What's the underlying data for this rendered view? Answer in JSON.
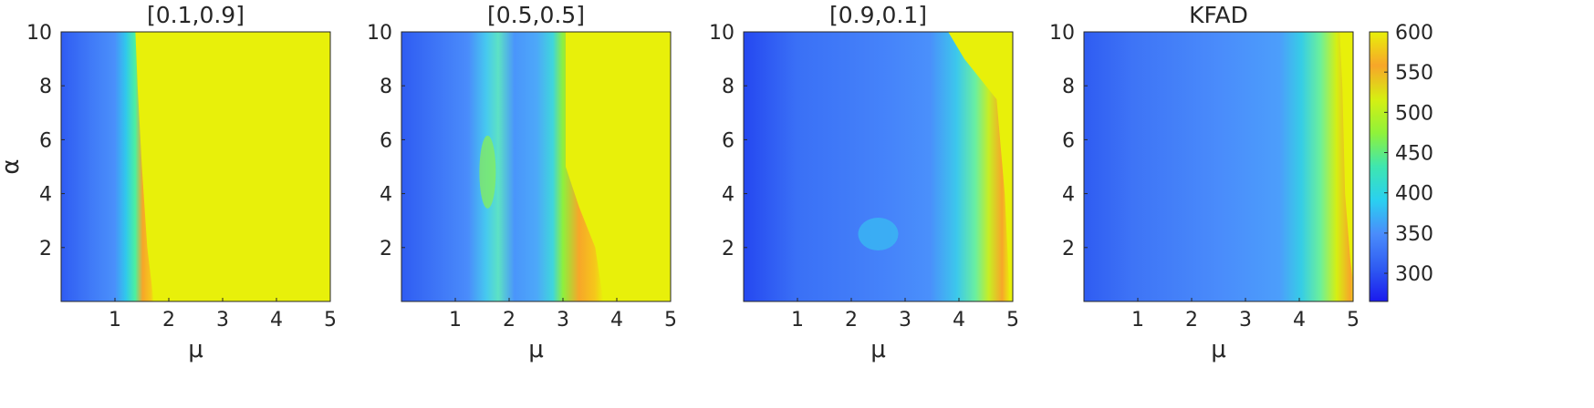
{
  "chart_data": {
    "type": "heatmap",
    "subtype": "filled-contour",
    "shared_xlabel": "μ",
    "shared_ylabel": "α",
    "xlim": [
      0,
      5
    ],
    "ylim": [
      0,
      10
    ],
    "xticks": [
      1,
      2,
      3,
      4,
      5
    ],
    "yticks": [
      2,
      4,
      6,
      8,
      10
    ],
    "colorbar": {
      "colormap": "jet-like (blue → cyan → green → yellow/orange)",
      "range": [
        265,
        600
      ],
      "ticks": [
        300,
        350,
        400,
        450,
        500,
        550,
        600
      ]
    },
    "panels": [
      {
        "title": "[0.1,0.9]",
        "description": "Low values (~320-360) for μ < 1.1; sharp ridge of high values (~570) near μ ≈ 1.3-1.6 (shifting slightly right as α decreases); saturated (600) for μ > 1.6.",
        "boundary_by_alpha": [
          [
            0,
            1.72
          ],
          [
            2,
            1.6
          ],
          [
            5,
            1.5
          ],
          [
            8,
            1.42
          ],
          [
            10,
            1.38
          ]
        ]
      },
      {
        "title": "[0.5,0.5]",
        "description": "Low values for small μ; a cyan/green band (~420-470) near μ ≈ 1.3-1.8 peaking around α ≈ 5; ridge near μ ≈ 2.9-3.0 at high α, moving to μ ≈ 3.6 at low α; saturated (600) beyond.",
        "boundary_by_alpha": [
          [
            0,
            3.75
          ],
          [
            2,
            3.6
          ],
          [
            3.5,
            3.3
          ],
          [
            5,
            3.05
          ],
          [
            10,
            3.05
          ]
        ]
      },
      {
        "title": "[0.9,0.1]",
        "description": "Mostly ~330-370 across μ < 3.5; small cyan patch (~410) near μ ≈ 2.5, α ≈ 2.5; gradient rising to ~580 near μ ≈ 4.6-4.9; saturated region only at top-right (α > 8, μ > 4).",
        "boundary_by_alpha": [
          [
            0,
            4.95
          ],
          [
            4,
            4.85
          ],
          [
            7.5,
            4.7
          ],
          [
            9,
            4.1
          ],
          [
            10,
            3.8
          ]
        ]
      },
      {
        "title": "KFAD",
        "description": "Low values (~300-370) for μ < 3.9; gradient increasing to ~550-590 near μ ≈ 4.7-5; slight saturation toward μ = 5 for α > 1.5.",
        "boundary_by_alpha": [
          [
            0,
            5.05
          ],
          [
            1.5,
            4.95
          ],
          [
            4,
            4.85
          ],
          [
            8,
            4.8
          ],
          [
            10,
            4.75
          ]
        ]
      }
    ]
  },
  "colors": {
    "colormap_stops": [
      "#1a1aee",
      "#2f5cf2",
      "#4a8cfb",
      "#2ad0f0",
      "#3ee6b0",
      "#8ff23a",
      "#d6ef12",
      "#f7a629",
      "#e8f00a"
    ],
    "saturated": "#e8f00a"
  }
}
